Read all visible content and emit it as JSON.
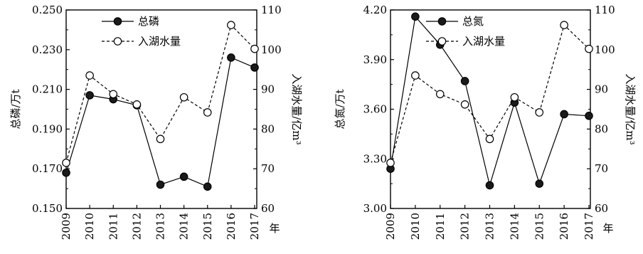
{
  "chart_data": [
    {
      "type": "line",
      "x": [
        "2009",
        "2010",
        "2011",
        "2012",
        "2013",
        "2014",
        "2015",
        "2016",
        "2017"
      ],
      "ylabel": "总磷/万t",
      "y2label": "入湖水量/亿m³",
      "xunit": "年",
      "ylim": [
        0.15,
        0.25
      ],
      "y2lim": [
        60,
        110
      ],
      "yticks": [
        "0.150",
        "0.170",
        "0.190",
        "0.210",
        "0.230",
        "0.250"
      ],
      "y2ticks": [
        "60",
        "70",
        "80",
        "90",
        "100",
        "110"
      ],
      "grid": false,
      "legend_position": "top-left",
      "series": [
        {
          "name": "总磷",
          "axis": "left",
          "marker": "filled-circle",
          "line": "solid",
          "values": [
            0.168,
            0.207,
            0.205,
            0.202,
            0.162,
            0.166,
            0.161,
            0.226,
            0.221
          ]
        },
        {
          "name": "入湖水量",
          "axis": "right",
          "marker": "open-circle",
          "line": "dashed",
          "values": [
            71.5,
            93.5,
            88.8,
            86.2,
            77.5,
            88.0,
            84.2,
            106.2,
            100.2
          ]
        }
      ]
    },
    {
      "type": "line",
      "x": [
        "2009",
        "2010",
        "2011",
        "2012",
        "2013",
        "2014",
        "2015",
        "2016",
        "2017"
      ],
      "ylabel": "总氮/万t",
      "y2label": "入湖水量/亿m³",
      "xunit": "年",
      "ylim": [
        3.0,
        4.2
      ],
      "y2lim": [
        60,
        110
      ],
      "yticks": [
        "3.00",
        "3.30",
        "3.60",
        "3.90",
        "4.20"
      ],
      "y2ticks": [
        "60",
        "70",
        "80",
        "90",
        "100",
        "110"
      ],
      "grid": false,
      "legend_position": "top-left",
      "series": [
        {
          "name": "总氮",
          "axis": "left",
          "marker": "filled-circle",
          "line": "solid",
          "values": [
            3.24,
            4.16,
            3.99,
            3.77,
            3.14,
            3.64,
            3.15,
            3.57,
            3.56
          ]
        },
        {
          "name": "入湖水量",
          "axis": "right",
          "marker": "open-circle",
          "line": "dashed",
          "values": [
            71.5,
            93.5,
            88.8,
            86.2,
            77.5,
            88.0,
            84.2,
            106.2,
            100.2
          ]
        }
      ]
    }
  ]
}
